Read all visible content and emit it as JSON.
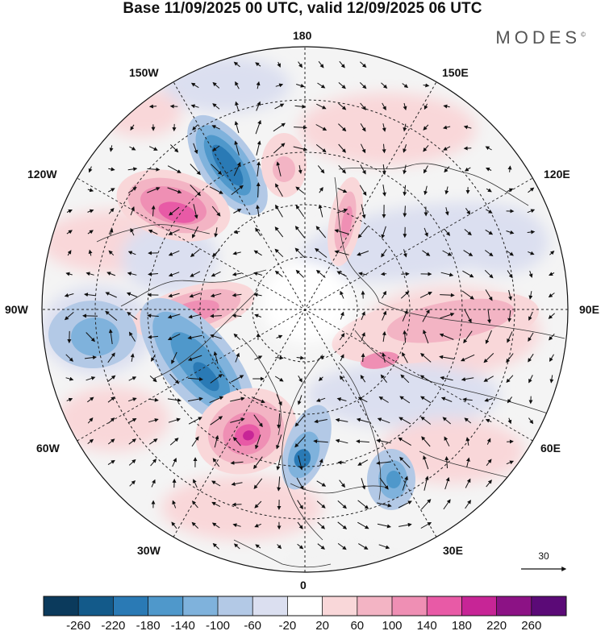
{
  "title": "Base 11/09/2025 00 UTC, valid 12/09/2025 06 UTC",
  "brand": {
    "name": "MODES",
    "mark": "©"
  },
  "longitude_labels": {
    "top": "180",
    "bottom": "0",
    "left": "90W",
    "right": "90E",
    "upper_left_1": "150W",
    "upper_left_2": "120W",
    "upper_right_1": "150E",
    "upper_right_2": "120E",
    "lower_left_1": "60W",
    "lower_left_2": "30W",
    "lower_right_1": "60E",
    "lower_right_2": "30E"
  },
  "vector_reference": {
    "value": "30"
  },
  "colorbar": {
    "ticks": [
      "-260",
      "-220",
      "-180",
      "-140",
      "-100",
      "-60",
      "-20",
      "20",
      "60",
      "100",
      "140",
      "180",
      "220",
      "260"
    ],
    "colors": [
      "#0b3a5c",
      "#135a8a",
      "#2a7ab5",
      "#4f98cb",
      "#7fb2dc",
      "#b3c9e6",
      "#dbdff0",
      "#ffffff",
      "#f9d7d9",
      "#f3b4c4",
      "#ef8fb4",
      "#e85aa6",
      "#c72596",
      "#8c1285",
      "#5b0a77"
    ]
  },
  "colors": {
    "background": "#ffffff",
    "land_grey": "#e8e8e8",
    "positive": "#e85aa6",
    "negative": "#2a7ab5"
  }
}
